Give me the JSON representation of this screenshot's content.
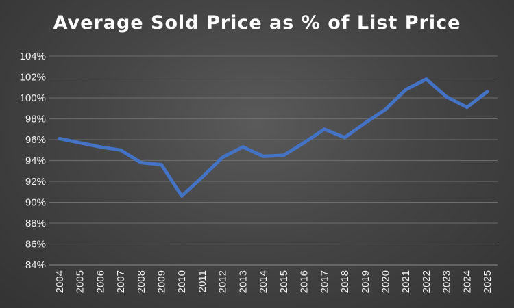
{
  "chart_data": {
    "type": "line",
    "title": "Average Sold Price as % of List Price",
    "xlabel": "",
    "ylabel": "",
    "x": [
      "2004",
      "2005",
      "2006",
      "2007",
      "2008",
      "2009",
      "2010",
      "2011",
      "2012",
      "2013",
      "2014",
      "2015",
      "2016",
      "2017",
      "2018",
      "2019",
      "2020",
      "2021",
      "2022",
      "2023",
      "2024",
      "2025"
    ],
    "series": [
      {
        "values": [
          96.1,
          95.7,
          95.3,
          95.0,
          93.8,
          93.6,
          90.6,
          92.4,
          94.3,
          95.3,
          94.4,
          94.5,
          95.7,
          97.0,
          96.2,
          97.6,
          98.9,
          100.8,
          101.8,
          100.1,
          99.1,
          100.6
        ],
        "color": "#4472c4"
      }
    ],
    "ylim": [
      84,
      104
    ],
    "ytick_labels": [
      "84%",
      "86%",
      "88%",
      "90%",
      "92%",
      "94%",
      "96%",
      "98%",
      "100%",
      "102%",
      "104%"
    ],
    "grid": true,
    "legend": "none"
  }
}
